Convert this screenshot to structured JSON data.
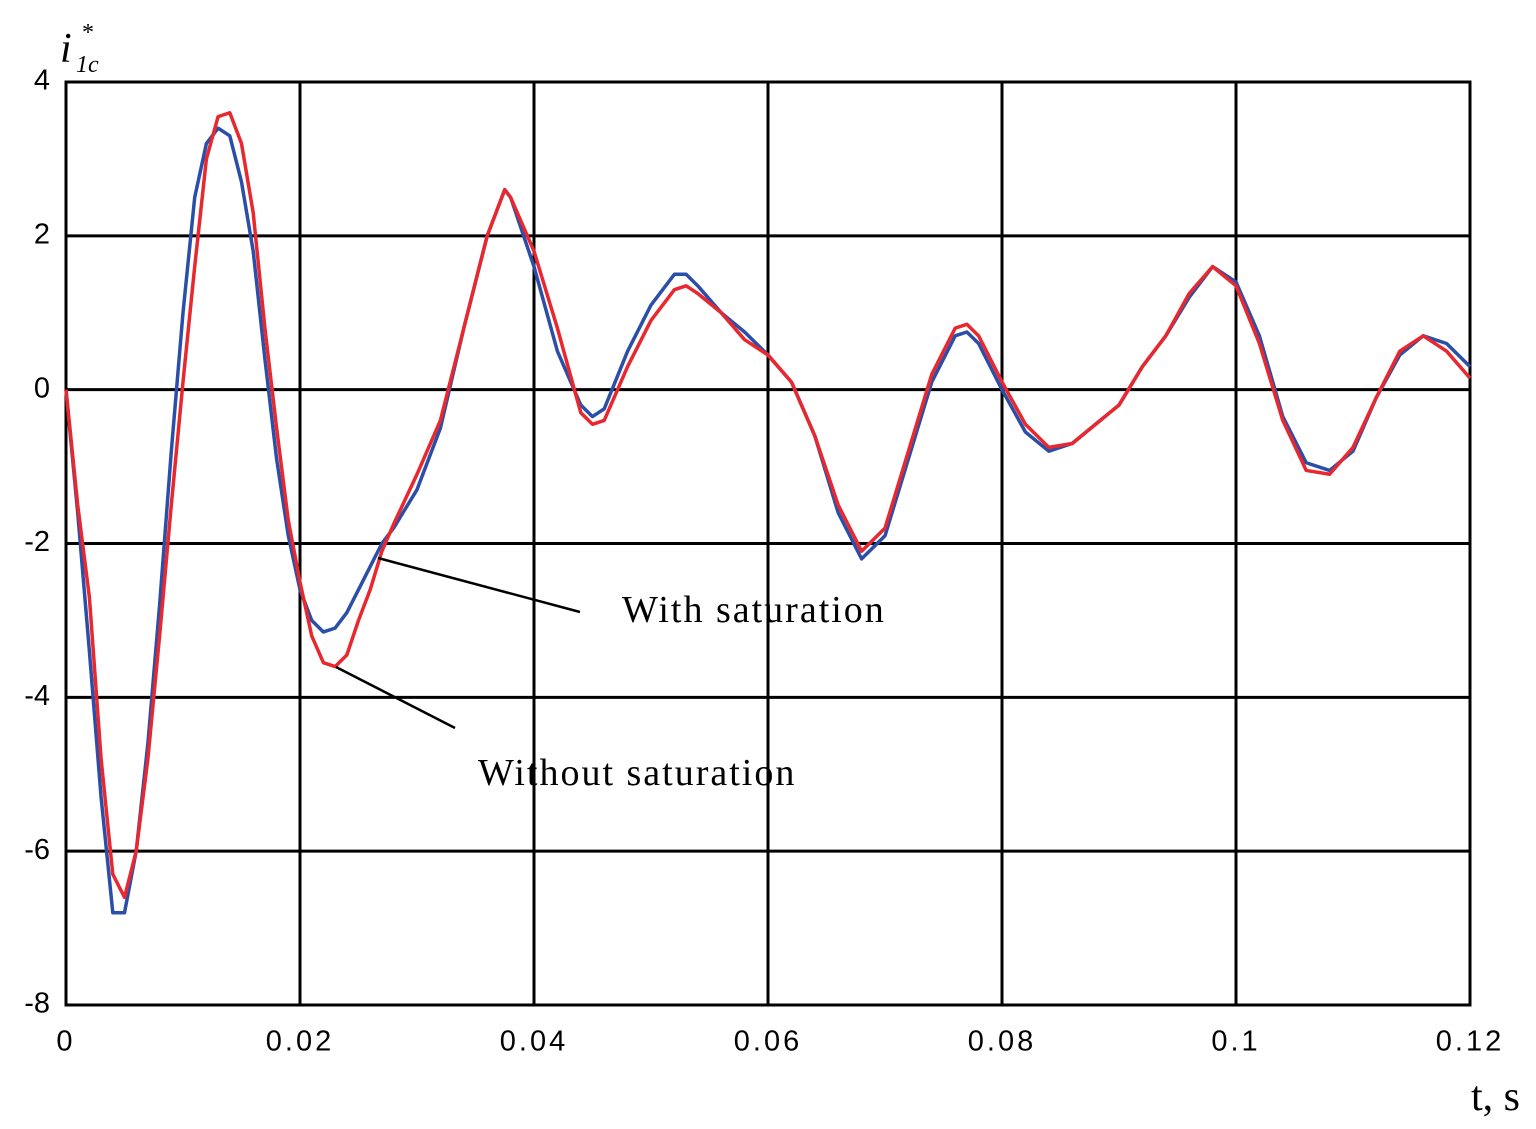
{
  "chart_data": {
    "type": "line",
    "x_label": "t, s",
    "y_label": {
      "symbol": "i",
      "superscript": "*",
      "subscript": "1c"
    },
    "xlim": [
      0,
      0.12
    ],
    "ylim": [
      -8,
      4
    ],
    "xticks": [
      0,
      0.02,
      0.04,
      0.06,
      0.08,
      0.1,
      0.12
    ],
    "yticks": [
      4,
      2,
      0,
      -2,
      -4,
      -6,
      -8
    ],
    "grid": true,
    "x": [
      0,
      0.001,
      0.002,
      0.003,
      0.004,
      0.005,
      0.006,
      0.007,
      0.008,
      0.009,
      0.01,
      0.011,
      0.012,
      0.013,
      0.014,
      0.015,
      0.016,
      0.017,
      0.018,
      0.019,
      0.02,
      0.021,
      0.022,
      0.023,
      0.024,
      0.025,
      0.026,
      0.027,
      0.028,
      0.03,
      0.032,
      0.034,
      0.036,
      0.0375,
      0.038,
      0.04,
      0.042,
      0.044,
      0.045,
      0.046,
      0.048,
      0.05,
      0.052,
      0.053,
      0.054,
      0.056,
      0.058,
      0.06,
      0.062,
      0.064,
      0.066,
      0.068,
      0.07,
      0.072,
      0.074,
      0.076,
      0.077,
      0.078,
      0.08,
      0.082,
      0.084,
      0.086,
      0.088,
      0.09,
      0.092,
      0.094,
      0.096,
      0.098,
      0.1,
      0.102,
      0.104,
      0.106,
      0.108,
      0.11,
      0.112,
      0.114,
      0.116,
      0.118,
      0.12
    ],
    "series": [
      {
        "name": "With saturation",
        "color": "#2b4fa8",
        "values": [
          0,
          -1.6,
          -3.4,
          -5.3,
          -6.8,
          -6.8,
          -6.0,
          -4.6,
          -2.8,
          -0.8,
          1.0,
          2.5,
          3.2,
          3.4,
          3.3,
          2.7,
          1.8,
          0.4,
          -0.9,
          -1.9,
          -2.6,
          -3.0,
          -3.15,
          -3.1,
          -2.9,
          -2.6,
          -2.3,
          -2.0,
          -1.8,
          -1.3,
          -0.5,
          0.8,
          2.0,
          2.6,
          2.5,
          1.6,
          0.5,
          -0.2,
          -0.35,
          -0.25,
          0.5,
          1.1,
          1.5,
          1.5,
          1.35,
          1.0,
          0.75,
          0.45,
          0.1,
          -0.6,
          -1.6,
          -2.2,
          -1.9,
          -0.9,
          0.1,
          0.7,
          0.75,
          0.6,
          0,
          -0.55,
          -0.8,
          -0.7,
          -0.45,
          -0.2,
          0.3,
          0.7,
          1.2,
          1.6,
          1.4,
          0.7,
          -0.35,
          -0.95,
          -1.05,
          -0.8,
          -0.1,
          0.45,
          0.7,
          0.6,
          0.3
        ]
      },
      {
        "name": "Without saturation",
        "color": "#e8282e",
        "values": [
          0,
          -1.5,
          -2.7,
          -4.8,
          -6.3,
          -6.6,
          -6.0,
          -4.8,
          -3.2,
          -1.5,
          0.1,
          1.6,
          3.0,
          3.55,
          3.6,
          3.2,
          2.3,
          0.8,
          -0.5,
          -1.7,
          -2.5,
          -3.2,
          -3.55,
          -3.6,
          -3.45,
          -3.0,
          -2.6,
          -2.1,
          -1.75,
          -1.1,
          -0.4,
          0.8,
          2.0,
          2.6,
          2.5,
          1.8,
          0.8,
          -0.3,
          -0.45,
          -0.4,
          0.3,
          0.9,
          1.3,
          1.35,
          1.25,
          1.0,
          0.65,
          0.45,
          0.1,
          -0.6,
          -1.5,
          -2.1,
          -1.8,
          -0.8,
          0.2,
          0.8,
          0.85,
          0.7,
          0.1,
          -0.45,
          -0.75,
          -0.7,
          -0.45,
          -0.2,
          0.3,
          0.7,
          1.25,
          1.6,
          1.35,
          0.6,
          -0.4,
          -1.05,
          -1.1,
          -0.75,
          -0.1,
          0.5,
          0.7,
          0.5,
          0.15
        ]
      }
    ]
  }
}
